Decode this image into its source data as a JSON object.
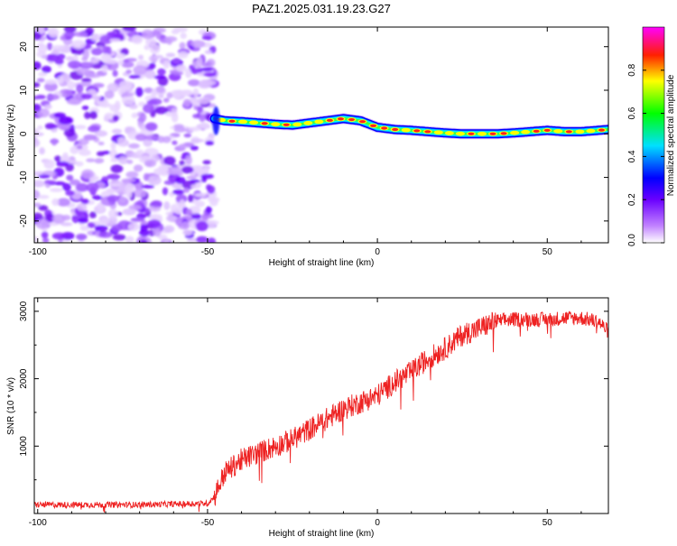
{
  "title": "PAZ1.2025.031.19.23.G27",
  "chart_data": [
    {
      "type": "heatmap",
      "xlabel": "Height of straight line (km)",
      "ylabel": "Frequency (Hz)",
      "xlim": [
        -101,
        68
      ],
      "ylim": [
        -25,
        24.5
      ],
      "x_ticks": [
        -100,
        -50,
        0,
        50
      ],
      "y_ticks": [
        -20,
        -10,
        0,
        10,
        20
      ],
      "colorbar": {
        "label": "Normalized spectral amplitude",
        "range": [
          0,
          1
        ],
        "ticks": [
          0.0,
          0.2,
          0.4,
          0.6,
          0.8
        ],
        "tick_labels": [
          "0.0",
          "0.2",
          "0.4",
          "0.6",
          "0.8"
        ],
        "colormap": [
          "#ffffff",
          "#8000ff",
          "#0000ff",
          "#00ffff",
          "#00ff00",
          "#ffff00",
          "#ff0000",
          "#ff00ff"
        ]
      },
      "noise_region_x": [
        -101,
        -48
      ],
      "frequency_track": {
        "x": [
          -48,
          -45,
          -40,
          -35,
          -30,
          -25,
          -20,
          -15,
          -10,
          -5,
          0,
          5,
          10,
          15,
          20,
          25,
          30,
          35,
          40,
          45,
          50,
          55,
          60,
          65,
          68
        ],
        "y": [
          3.5,
          3.0,
          2.8,
          2.5,
          2.2,
          2.0,
          2.5,
          3.0,
          3.5,
          3.0,
          1.5,
          1.0,
          0.8,
          0.5,
          0.2,
          0.0,
          0.0,
          0.0,
          0.2,
          0.5,
          0.8,
          0.5,
          0.5,
          0.8,
          1.0
        ]
      }
    },
    {
      "type": "line",
      "xlabel": "Height of straight line (km)",
      "ylabel": "SNR (10 * v/v)",
      "xlim": [
        -101,
        68
      ],
      "ylim": [
        0,
        3200
      ],
      "x_ticks": [
        -100,
        -50,
        0,
        50
      ],
      "y_ticks": [
        1000,
        2000,
        3000
      ],
      "series": [
        {
          "color": "#ee2222",
          "x": [
            -101,
            -90,
            -80,
            -70,
            -60,
            -50,
            -48,
            -45,
            -40,
            -35,
            -30,
            -25,
            -20,
            -15,
            -10,
            -5,
            0,
            5,
            10,
            15,
            20,
            25,
            30,
            35,
            40,
            45,
            50,
            55,
            60,
            65,
            68
          ],
          "y": [
            130,
            130,
            130,
            130,
            140,
            150,
            250,
            600,
            800,
            900,
            1000,
            1100,
            1250,
            1400,
            1550,
            1650,
            1750,
            1950,
            2100,
            2300,
            2450,
            2650,
            2750,
            2850,
            2880,
            2880,
            2880,
            2900,
            2900,
            2850,
            2700
          ]
        }
      ]
    }
  ]
}
